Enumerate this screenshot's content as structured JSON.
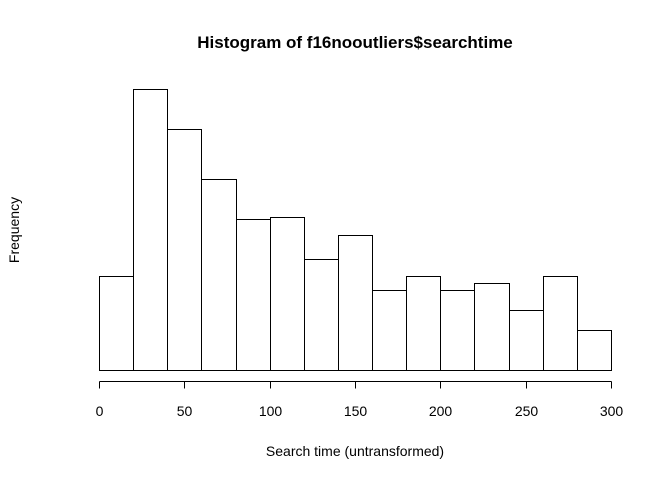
{
  "chart_data": {
    "type": "bar",
    "title": "Histogram of f16nooutliers$searchtime",
    "xlabel": "Search time (untransformed)",
    "ylabel": "Frequency",
    "bin_edges": [
      0,
      20,
      40,
      60,
      80,
      100,
      120,
      140,
      160,
      180,
      200,
      220,
      240,
      260,
      280,
      300
    ],
    "values": [
      7,
      21,
      18,
      14.3,
      11.3,
      11.4,
      8.3,
      10.1,
      6,
      7,
      6,
      6.5,
      4.5,
      7,
      3
    ],
    "xlim": [
      0,
      300
    ],
    "ylim": [
      0,
      21
    ],
    "x_ticks": [
      0,
      50,
      100,
      150,
      200,
      250,
      300
    ],
    "x_tick_labels": [
      "0",
      "50",
      "100",
      "150",
      "200",
      "250",
      "300"
    ],
    "y_axis_shown": false,
    "grid": false
  }
}
